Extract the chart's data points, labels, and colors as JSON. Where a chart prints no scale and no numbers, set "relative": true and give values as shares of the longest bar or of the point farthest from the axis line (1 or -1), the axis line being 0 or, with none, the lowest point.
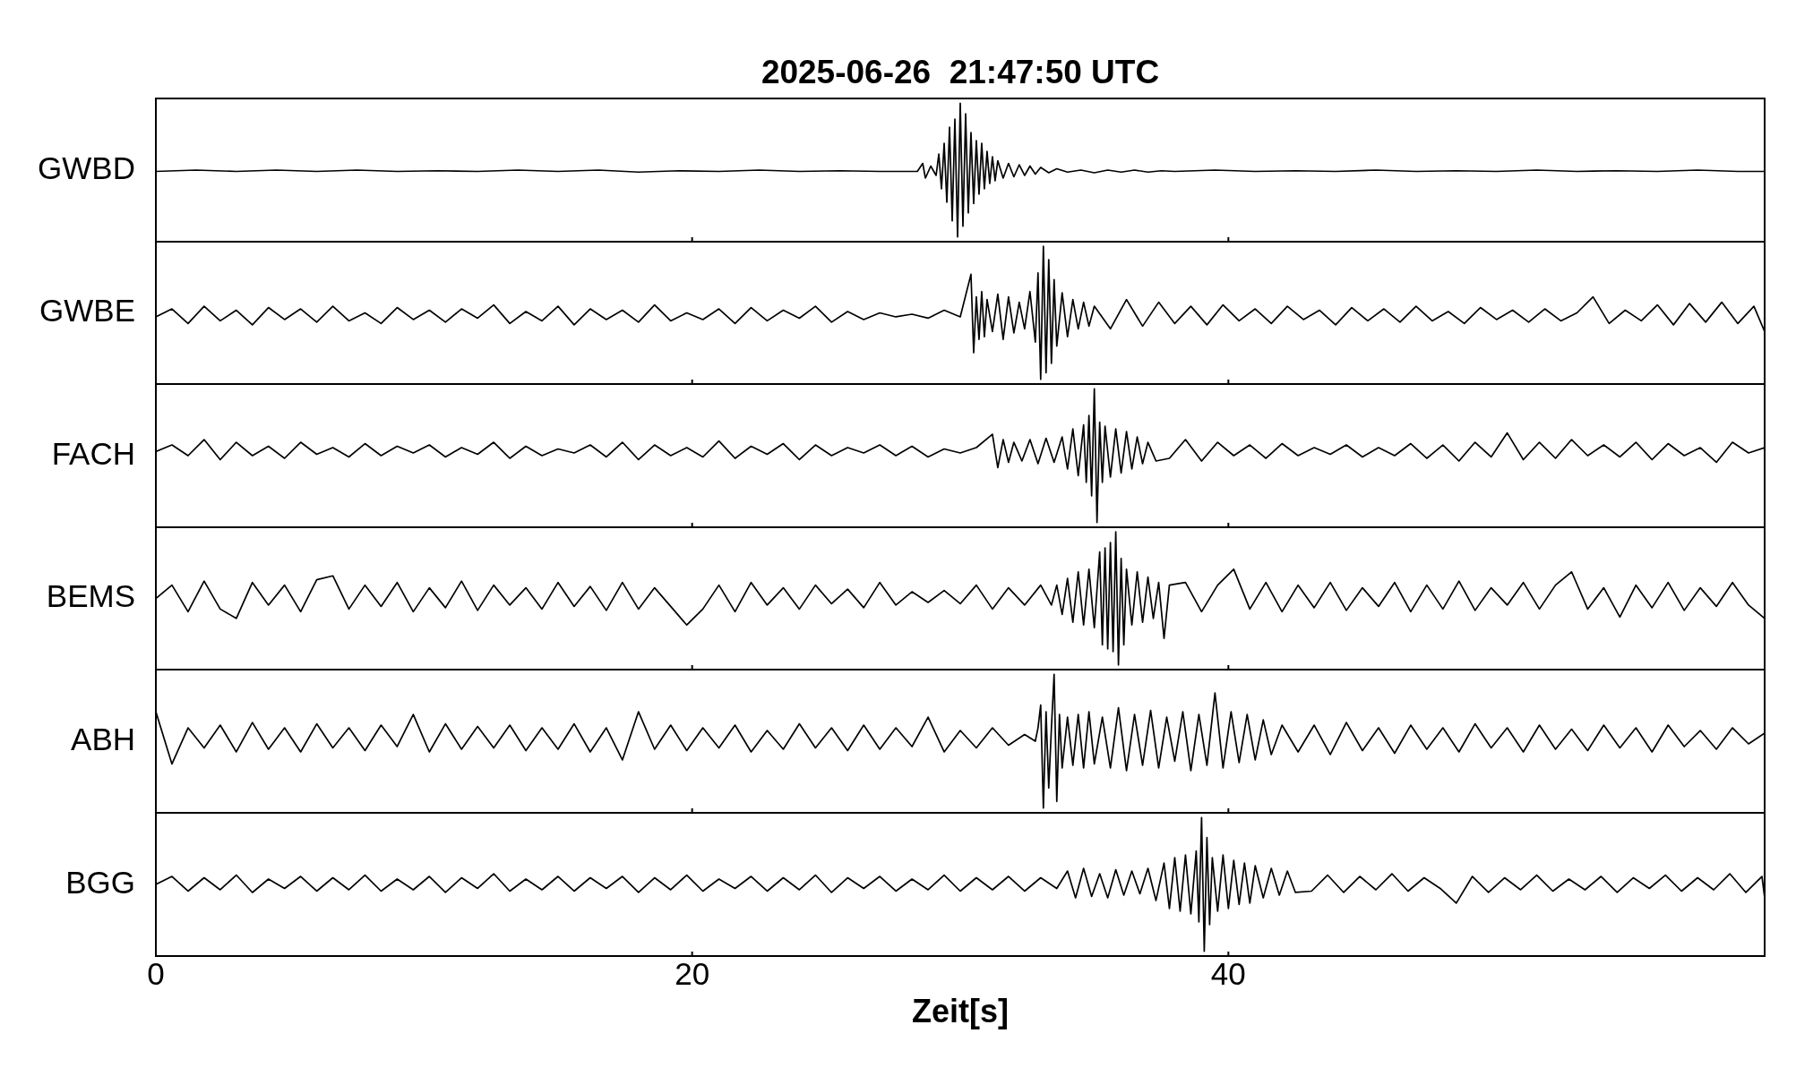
{
  "chart_data": [
    {
      "type": "line",
      "title": "2025-06-26  21:47:50 UTC",
      "ylabel": "GWBD",
      "relative": true,
      "color": "#000000",
      "marker": "none",
      "line_style": "solid",
      "xlim": [
        0,
        60
      ],
      "xticks": [
        0,
        20,
        40
      ],
      "tick_labels": false,
      "x": [
        0,
        1.5,
        3,
        4.5,
        6,
        7.5,
        9,
        10.5,
        12,
        13.5,
        15,
        16.5,
        18,
        19.5,
        21,
        22.5,
        24,
        25.5,
        27,
        28.4,
        28.6,
        28.7,
        28.9,
        29.1,
        29.2,
        29.3,
        29.4,
        29.5,
        29.6,
        29.7,
        29.8,
        29.9,
        30,
        30.1,
        30.2,
        30.3,
        30.4,
        30.5,
        30.6,
        30.7,
        30.8,
        30.9,
        31,
        31.1,
        31.2,
        31.3,
        31.4,
        31.6,
        31.8,
        32,
        32.2,
        32.4,
        32.6,
        32.8,
        33,
        33.3,
        33.6,
        34,
        34.5,
        35,
        35.5,
        36,
        36.5,
        37,
        37.5,
        38,
        39.5,
        41,
        42.5,
        44,
        45.5,
        47,
        48.5,
        50,
        51.5,
        53,
        54.5,
        56,
        57.5,
        59,
        60
      ],
      "values": [
        0.49,
        0.5,
        0.49,
        0.5,
        0.49,
        0.5,
        0.49,
        0.495,
        0.49,
        0.5,
        0.49,
        0.5,
        0.485,
        0.495,
        0.49,
        0.5,
        0.49,
        0.495,
        0.49,
        0.49,
        0.55,
        0.44,
        0.53,
        0.46,
        0.62,
        0.36,
        0.7,
        0.26,
        0.82,
        0.12,
        0.88,
        0.0,
        1.0,
        0.08,
        0.92,
        0.18,
        0.78,
        0.25,
        0.72,
        0.32,
        0.7,
        0.36,
        0.64,
        0.4,
        0.6,
        0.42,
        0.57,
        0.44,
        0.55,
        0.45,
        0.54,
        0.46,
        0.53,
        0.47,
        0.52,
        0.48,
        0.51,
        0.485,
        0.5,
        0.48,
        0.5,
        0.485,
        0.5,
        0.485,
        0.495,
        0.49,
        0.5,
        0.49,
        0.495,
        0.49,
        0.5,
        0.49,
        0.495,
        0.49,
        0.5,
        0.49,
        0.495,
        0.49,
        0.5,
        0.49,
        0.49
      ]
    },
    {
      "type": "line",
      "ylabel": "GWBE",
      "relative": true,
      "color": "#000000",
      "marker": "none",
      "line_style": "solid",
      "xlim": [
        0,
        60
      ],
      "xticks": [
        0,
        20,
        40
      ],
      "tick_labels": false,
      "x": [
        0,
        0.6,
        1.2,
        1.8,
        2.4,
        3,
        3.6,
        4.2,
        4.8,
        5.4,
        6,
        6.6,
        7.2,
        7.8,
        8.4,
        9,
        9.6,
        10.2,
        10.8,
        11.4,
        12,
        12.6,
        13.2,
        13.8,
        14.4,
        15,
        15.6,
        16.2,
        16.8,
        17.4,
        18,
        18.6,
        19.2,
        19.8,
        20.4,
        21,
        21.6,
        22.2,
        22.8,
        23.4,
        24,
        24.6,
        25.2,
        25.8,
        26.4,
        27,
        27.6,
        28.2,
        28.8,
        29.4,
        30,
        30.4,
        30.5,
        30.6,
        30.7,
        30.8,
        30.9,
        31,
        31.2,
        31.4,
        31.6,
        31.8,
        32,
        32.2,
        32.4,
        32.6,
        32.8,
        32.9,
        33,
        33.1,
        33.2,
        33.3,
        33.4,
        33.5,
        33.6,
        33.8,
        34,
        34.2,
        34.4,
        34.6,
        34.8,
        35,
        35.6,
        36.2,
        36.8,
        37.4,
        38,
        38.6,
        39.2,
        39.8,
        40.4,
        41,
        41.6,
        42.2,
        42.8,
        43.4,
        44,
        44.6,
        45.2,
        45.8,
        46.4,
        47,
        47.6,
        48.2,
        48.8,
        49.4,
        50,
        50.6,
        51.2,
        51.8,
        52.4,
        53,
        53.6,
        54.2,
        54.8,
        55.4,
        56,
        56.6,
        57.2,
        57.8,
        58.4,
        59,
        59.6,
        60
      ],
      "values": [
        0.47,
        0.53,
        0.42,
        0.55,
        0.44,
        0.52,
        0.41,
        0.54,
        0.45,
        0.53,
        0.43,
        0.55,
        0.44,
        0.5,
        0.42,
        0.54,
        0.45,
        0.52,
        0.43,
        0.53,
        0.46,
        0.56,
        0.42,
        0.51,
        0.44,
        0.55,
        0.41,
        0.53,
        0.45,
        0.52,
        0.43,
        0.56,
        0.44,
        0.5,
        0.45,
        0.53,
        0.42,
        0.54,
        0.44,
        0.52,
        0.46,
        0.55,
        0.43,
        0.51,
        0.45,
        0.5,
        0.47,
        0.49,
        0.46,
        0.52,
        0.47,
        0.79,
        0.2,
        0.62,
        0.3,
        0.66,
        0.32,
        0.6,
        0.36,
        0.64,
        0.3,
        0.62,
        0.35,
        0.58,
        0.38,
        0.66,
        0.28,
        0.8,
        0.0,
        1.0,
        0.05,
        0.9,
        0.12,
        0.75,
        0.25,
        0.65,
        0.32,
        0.6,
        0.38,
        0.58,
        0.4,
        0.55,
        0.38,
        0.6,
        0.4,
        0.58,
        0.42,
        0.55,
        0.41,
        0.56,
        0.44,
        0.53,
        0.42,
        0.55,
        0.45,
        0.52,
        0.41,
        0.54,
        0.44,
        0.53,
        0.43,
        0.55,
        0.44,
        0.51,
        0.42,
        0.54,
        0.45,
        0.52,
        0.43,
        0.53,
        0.44,
        0.5,
        0.62,
        0.42,
        0.52,
        0.44,
        0.56,
        0.41,
        0.57,
        0.43,
        0.58,
        0.42,
        0.55,
        0.36
      ]
    },
    {
      "type": "line",
      "ylabel": "FACH",
      "relative": true,
      "color": "#000000",
      "marker": "none",
      "line_style": "solid",
      "xlim": [
        0,
        60
      ],
      "xticks": [
        0,
        20,
        40
      ],
      "tick_labels": false,
      "x": [
        0,
        0.6,
        1.2,
        1.8,
        2.4,
        3,
        3.6,
        4.2,
        4.8,
        5.4,
        6,
        6.6,
        7.2,
        7.8,
        8.4,
        9,
        9.6,
        10.2,
        10.8,
        11.4,
        12,
        12.6,
        13.2,
        13.8,
        14.4,
        15,
        15.6,
        16.2,
        16.8,
        17.4,
        18,
        18.6,
        19.2,
        19.8,
        20.4,
        21,
        21.6,
        22.2,
        22.8,
        23.4,
        24,
        24.6,
        25.2,
        25.8,
        26.4,
        27,
        27.6,
        28.2,
        28.8,
        29.4,
        30,
        30.6,
        31.2,
        31.4,
        31.6,
        31.8,
        32,
        32.3,
        32.6,
        32.9,
        33.2,
        33.5,
        33.8,
        34,
        34.2,
        34.4,
        34.6,
        34.7,
        34.8,
        34.9,
        35,
        35.1,
        35.2,
        35.3,
        35.4,
        35.6,
        35.8,
        36,
        36.2,
        36.4,
        36.6,
        36.8,
        37,
        37.3,
        37.8,
        38.4,
        39,
        39.6,
        40.2,
        40.8,
        41.4,
        42,
        42.6,
        43.2,
        43.8,
        44.4,
        45,
        45.6,
        46.2,
        46.8,
        47.4,
        48,
        48.6,
        49.2,
        49.8,
        50.4,
        51,
        51.6,
        52.2,
        52.8,
        53.4,
        54,
        54.6,
        55.2,
        55.8,
        56.4,
        57,
        57.6,
        58.2,
        58.8,
        59.4,
        60
      ],
      "values": [
        0.53,
        0.58,
        0.5,
        0.62,
        0.47,
        0.6,
        0.5,
        0.57,
        0.48,
        0.6,
        0.51,
        0.56,
        0.49,
        0.59,
        0.5,
        0.57,
        0.52,
        0.58,
        0.49,
        0.56,
        0.51,
        0.6,
        0.48,
        0.57,
        0.5,
        0.55,
        0.52,
        0.58,
        0.49,
        0.6,
        0.47,
        0.58,
        0.5,
        0.56,
        0.49,
        0.61,
        0.48,
        0.57,
        0.51,
        0.59,
        0.47,
        0.58,
        0.5,
        0.56,
        0.52,
        0.58,
        0.5,
        0.57,
        0.49,
        0.55,
        0.52,
        0.56,
        0.66,
        0.41,
        0.62,
        0.45,
        0.6,
        0.46,
        0.62,
        0.44,
        0.63,
        0.45,
        0.64,
        0.4,
        0.7,
        0.35,
        0.73,
        0.3,
        0.8,
        0.2,
        1.0,
        0.0,
        0.75,
        0.3,
        0.72,
        0.34,
        0.7,
        0.37,
        0.68,
        0.4,
        0.64,
        0.44,
        0.6,
        0.46,
        0.48,
        0.62,
        0.46,
        0.6,
        0.5,
        0.58,
        0.48,
        0.59,
        0.5,
        0.56,
        0.51,
        0.58,
        0.49,
        0.56,
        0.5,
        0.59,
        0.48,
        0.58,
        0.46,
        0.6,
        0.49,
        0.67,
        0.47,
        0.6,
        0.48,
        0.62,
        0.5,
        0.58,
        0.49,
        0.6,
        0.47,
        0.59,
        0.5,
        0.56,
        0.45,
        0.6,
        0.52,
        0.56
      ]
    },
    {
      "type": "line",
      "ylabel": "BEMS",
      "relative": true,
      "color": "#000000",
      "marker": "none",
      "line_style": "solid",
      "xlim": [
        0,
        60
      ],
      "xticks": [
        0,
        20,
        40
      ],
      "tick_labels": false,
      "x": [
        0,
        0.6,
        1.2,
        1.8,
        2.4,
        3,
        3.6,
        4.2,
        4.8,
        5.4,
        6,
        6.6,
        7.2,
        7.8,
        8.4,
        9,
        9.6,
        10.2,
        10.8,
        11.4,
        12,
        12.6,
        13.2,
        13.8,
        14.4,
        15,
        15.6,
        16.2,
        16.8,
        17.4,
        18,
        18.6,
        19.2,
        19.8,
        20.4,
        21,
        21.6,
        22.2,
        22.8,
        23.4,
        24,
        24.6,
        25.2,
        25.8,
        26.4,
        27,
        27.6,
        28.2,
        28.8,
        29.4,
        30,
        30.6,
        31.2,
        31.8,
        32.4,
        33,
        33.4,
        33.6,
        33.8,
        34,
        34.2,
        34.4,
        34.6,
        34.8,
        35,
        35.2,
        35.3,
        35.4,
        35.5,
        35.6,
        35.7,
        35.8,
        35.9,
        36,
        36.1,
        36.2,
        36.4,
        36.6,
        36.8,
        37,
        37.2,
        37.4,
        37.6,
        37.8,
        38.4,
        39,
        39.6,
        40.2,
        40.8,
        41.4,
        42,
        42.6,
        43.2,
        43.8,
        44.4,
        45,
        45.6,
        46.2,
        46.8,
        47.4,
        48,
        48.6,
        49.2,
        49.8,
        50.4,
        51,
        51.6,
        52.2,
        52.8,
        53.4,
        54,
        54.6,
        55.2,
        55.8,
        56.4,
        57,
        57.6,
        58.2,
        58.8,
        59.4,
        60
      ],
      "values": [
        0.5,
        0.6,
        0.4,
        0.63,
        0.42,
        0.35,
        0.62,
        0.45,
        0.6,
        0.4,
        0.64,
        0.67,
        0.42,
        0.6,
        0.44,
        0.62,
        0.4,
        0.58,
        0.43,
        0.63,
        0.41,
        0.6,
        0.45,
        0.58,
        0.42,
        0.62,
        0.44,
        0.59,
        0.41,
        0.62,
        0.42,
        0.58,
        0.44,
        0.3,
        0.42,
        0.6,
        0.4,
        0.62,
        0.45,
        0.58,
        0.42,
        0.6,
        0.46,
        0.57,
        0.43,
        0.62,
        0.45,
        0.55,
        0.47,
        0.56,
        0.46,
        0.6,
        0.42,
        0.58,
        0.45,
        0.6,
        0.45,
        0.6,
        0.38,
        0.65,
        0.32,
        0.7,
        0.3,
        0.72,
        0.28,
        0.85,
        0.15,
        0.88,
        0.12,
        0.92,
        0.1,
        1.0,
        0.0,
        0.8,
        0.15,
        0.72,
        0.3,
        0.7,
        0.32,
        0.66,
        0.35,
        0.62,
        0.2,
        0.6,
        0.62,
        0.4,
        0.6,
        0.72,
        0.42,
        0.62,
        0.4,
        0.6,
        0.43,
        0.62,
        0.41,
        0.58,
        0.44,
        0.62,
        0.4,
        0.6,
        0.42,
        0.63,
        0.41,
        0.58,
        0.45,
        0.62,
        0.42,
        0.6,
        0.7,
        0.42,
        0.58,
        0.36,
        0.6,
        0.43,
        0.62,
        0.41,
        0.58,
        0.44,
        0.62,
        0.45,
        0.35
      ]
    },
    {
      "type": "line",
      "ylabel": "ABH",
      "relative": true,
      "color": "#000000",
      "marker": "none",
      "line_style": "solid",
      "xlim": [
        0,
        60
      ],
      "xticks": [
        0,
        20,
        40
      ],
      "tick_labels": false,
      "x": [
        0,
        0.6,
        1.2,
        1.8,
        2.4,
        3,
        3.6,
        4.2,
        4.8,
        5.4,
        6,
        6.6,
        7.2,
        7.8,
        8.4,
        9,
        9.6,
        10.2,
        10.8,
        11.4,
        12,
        12.6,
        13.2,
        13.8,
        14.4,
        15,
        15.6,
        16.2,
        16.8,
        17.4,
        18,
        18.6,
        19.2,
        19.8,
        20.4,
        21,
        21.6,
        22.2,
        22.8,
        23.4,
        24,
        24.6,
        25.2,
        25.8,
        26.4,
        27,
        27.6,
        28.2,
        28.8,
        29.4,
        30,
        30.6,
        31.2,
        31.8,
        32.4,
        32.8,
        32.9,
        33,
        33.1,
        33.2,
        33.3,
        33.4,
        33.5,
        33.6,
        33.7,
        33.8,
        34,
        34.2,
        34.4,
        34.6,
        34.8,
        35,
        35.3,
        35.6,
        35.9,
        36.2,
        36.5,
        36.8,
        37.1,
        37.4,
        37.7,
        38,
        38.3,
        38.6,
        38.9,
        39.2,
        39.5,
        39.8,
        40.1,
        40.4,
        40.7,
        41,
        41.3,
        41.6,
        42,
        42.6,
        43.2,
        43.8,
        44.4,
        45,
        45.6,
        46.2,
        46.8,
        47.4,
        48,
        48.6,
        49.2,
        49.8,
        50.4,
        51,
        51.6,
        52.2,
        52.8,
        53.4,
        54,
        54.6,
        55.2,
        55.8,
        56.4,
        57,
        57.6,
        58.2,
        58.8,
        59.4,
        60
      ],
      "values": [
        0.72,
        0.33,
        0.6,
        0.45,
        0.62,
        0.42,
        0.64,
        0.44,
        0.6,
        0.42,
        0.63,
        0.45,
        0.6,
        0.43,
        0.62,
        0.46,
        0.7,
        0.42,
        0.63,
        0.44,
        0.61,
        0.45,
        0.62,
        0.43,
        0.6,
        0.44,
        0.63,
        0.42,
        0.6,
        0.36,
        0.72,
        0.44,
        0.62,
        0.43,
        0.6,
        0.45,
        0.62,
        0.42,
        0.58,
        0.44,
        0.63,
        0.45,
        0.6,
        0.43,
        0.62,
        0.44,
        0.6,
        0.46,
        0.68,
        0.42,
        0.58,
        0.45,
        0.6,
        0.47,
        0.55,
        0.5,
        0.6,
        0.77,
        0.0,
        0.72,
        0.15,
        0.6,
        1.0,
        0.05,
        0.7,
        0.3,
        0.68,
        0.32,
        0.7,
        0.3,
        0.72,
        0.33,
        0.68,
        0.3,
        0.75,
        0.28,
        0.7,
        0.32,
        0.73,
        0.3,
        0.68,
        0.35,
        0.72,
        0.28,
        0.7,
        0.32,
        0.86,
        0.3,
        0.72,
        0.34,
        0.7,
        0.36,
        0.66,
        0.4,
        0.62,
        0.42,
        0.62,
        0.4,
        0.64,
        0.43,
        0.6,
        0.41,
        0.62,
        0.44,
        0.6,
        0.42,
        0.63,
        0.45,
        0.6,
        0.42,
        0.62,
        0.44,
        0.59,
        0.43,
        0.62,
        0.45,
        0.6,
        0.42,
        0.62,
        0.46,
        0.58,
        0.44,
        0.6,
        0.48,
        0.56
      ]
    },
    {
      "type": "line",
      "ylabel": "BGG",
      "xlabel": "Zeit[s]",
      "relative": true,
      "color": "#000000",
      "marker": "none",
      "line_style": "solid",
      "xlim": [
        0,
        60
      ],
      "xticks": [
        0,
        20,
        40
      ],
      "tick_labels": "x",
      "x": [
        0,
        0.6,
        1.2,
        1.8,
        2.4,
        3,
        3.6,
        4.2,
        4.8,
        5.4,
        6,
        6.6,
        7.2,
        7.8,
        8.4,
        9,
        9.6,
        10.2,
        10.8,
        11.4,
        12,
        12.6,
        13.2,
        13.8,
        14.4,
        15,
        15.6,
        16.2,
        16.8,
        17.4,
        18,
        18.6,
        19.2,
        19.8,
        20.4,
        21,
        21.6,
        22.2,
        22.8,
        23.4,
        24,
        24.6,
        25.2,
        25.8,
        26.4,
        27,
        27.6,
        28.2,
        28.8,
        29.4,
        30,
        30.6,
        31.2,
        31.8,
        32.4,
        33,
        33.6,
        34,
        34.3,
        34.6,
        34.9,
        35.2,
        35.5,
        35.8,
        36.1,
        36.4,
        36.7,
        37,
        37.3,
        37.6,
        37.8,
        38,
        38.2,
        38.4,
        38.6,
        38.8,
        38.9,
        39,
        39.1,
        39.2,
        39.3,
        39.4,
        39.6,
        39.8,
        40,
        40.2,
        40.4,
        40.6,
        40.8,
        41,
        41.3,
        41.6,
        41.9,
        42.2,
        42.5,
        43.1,
        43.7,
        44.3,
        44.9,
        45.5,
        46.1,
        46.7,
        47.3,
        47.9,
        48.5,
        49.1,
        49.7,
        50.3,
        50.9,
        51.5,
        52.1,
        52.7,
        53.3,
        53.9,
        54.5,
        55.1,
        55.7,
        56.3,
        56.9,
        57.5,
        58.1,
        58.7,
        59.3,
        59.9,
        60
      ],
      "values": [
        0.5,
        0.56,
        0.45,
        0.55,
        0.46,
        0.57,
        0.44,
        0.54,
        0.47,
        0.56,
        0.45,
        0.55,
        0.46,
        0.57,
        0.45,
        0.54,
        0.46,
        0.56,
        0.44,
        0.55,
        0.47,
        0.58,
        0.45,
        0.54,
        0.46,
        0.56,
        0.45,
        0.55,
        0.47,
        0.56,
        0.44,
        0.55,
        0.46,
        0.57,
        0.45,
        0.54,
        0.47,
        0.56,
        0.45,
        0.55,
        0.46,
        0.57,
        0.44,
        0.55,
        0.47,
        0.56,
        0.45,
        0.54,
        0.46,
        0.57,
        0.45,
        0.55,
        0.46,
        0.56,
        0.45,
        0.55,
        0.47,
        0.6,
        0.4,
        0.62,
        0.41,
        0.58,
        0.4,
        0.61,
        0.42,
        0.6,
        0.43,
        0.62,
        0.38,
        0.66,
        0.32,
        0.7,
        0.3,
        0.72,
        0.28,
        0.75,
        0.22,
        1.0,
        0.0,
        0.85,
        0.2,
        0.7,
        0.3,
        0.72,
        0.32,
        0.68,
        0.35,
        0.66,
        0.36,
        0.64,
        0.4,
        0.62,
        0.42,
        0.6,
        0.44,
        0.45,
        0.57,
        0.44,
        0.56,
        0.46,
        0.58,
        0.45,
        0.55,
        0.47,
        0.36,
        0.56,
        0.44,
        0.55,
        0.46,
        0.57,
        0.45,
        0.54,
        0.46,
        0.56,
        0.44,
        0.55,
        0.47,
        0.57,
        0.45,
        0.55,
        0.46,
        0.58,
        0.44,
        0.56,
        0.4
      ]
    }
  ]
}
